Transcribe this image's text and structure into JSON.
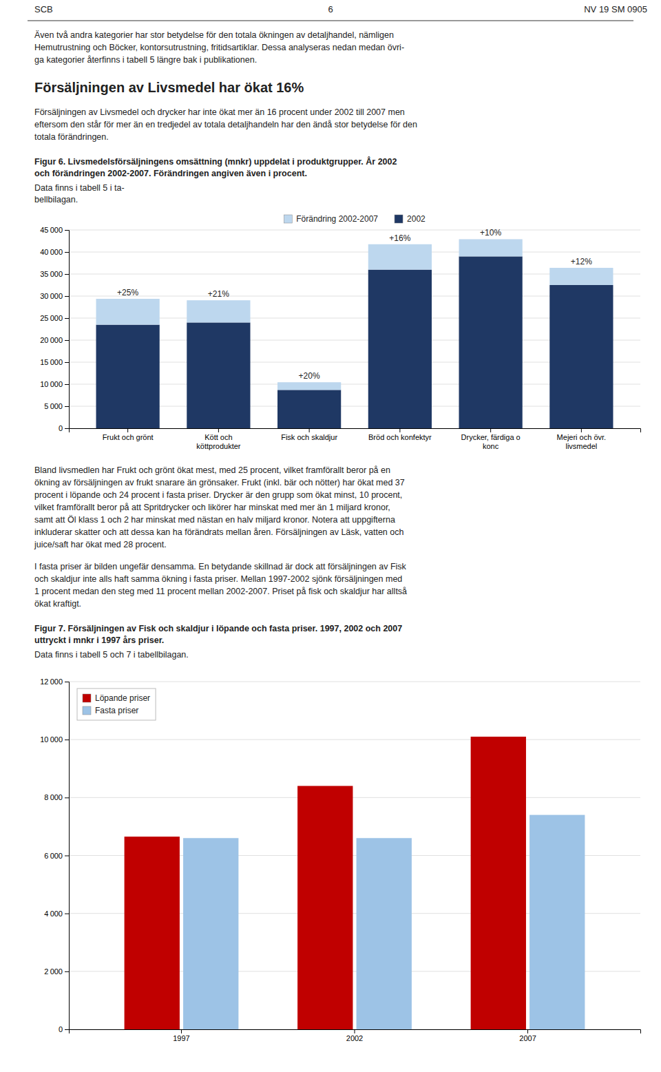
{
  "page": {
    "header": [
      "SCB",
      "6",
      "NV 19 SM 0905"
    ],
    "heading": "Försäljningen av Livsmedel har ökat 16%",
    "paragraphs": [
      "Även två andra kategorier har stor betydelse för den totala ökningen av detaljhandel, nämligen\nHemutrustning och Böcker, kontorsutrustning, fritidsartiklar. Dessa analyseras nedan medan övri-\nga kategorier återfinns i tabell 5 längre bak i publikationen.",
      "Försäljningen av Livsmedel och drycker har inte ökat mer än 16 procent under 2002 till 2007 men\neftersom den står för mer än en tredjedel av totala detaljhandeln har den ändå stor betydelse för den\ntotala förändringen.",
      "Bland livsmedlen har Frukt och grönt ökat mest, med 25 procent, vilket framförallt beror på en\nökning av försäljningen av frukt snarare än grönsaker. Frukt (inkl. bär och nötter) har ökat med 37\nprocent i löpande och 24 procent i fasta priser. Drycker är den grupp som ökat minst, 10 procent,\nvilket framförallt beror på att Spritdrycker och likörer har minskat med mer än 1 miljard kronor,\nsamt att Öl klass 1 och 2 har minskat med nästan en halv miljard kronor. Notera att uppgifterna\ninkluderar skatter och att dessa kan ha förändrats mellan åren. Försäljningen av Läsk, vatten och\njuice/saft har ökat med 28 procent.",
      "I fasta priser är bilden ungefär densamma. En betydande skillnad är dock att försäljningen av Fisk\noch skaldjur inte alls haft samma ökning i fasta priser. Mellan 1997-2002 sjönk försäljningen med\n1 procent medan den steg med 11 procent mellan 2002-2007. Priset på fisk och skaldjur har alltså\nökat kraftigt."
    ]
  },
  "chart_data": [
    {
      "type": "bar",
      "title": "Figur 6. Livsmedelsförsäljningens omsättning (mnkr) uppdelat i produktgrupper. År 2002\noch förändringen 2002-2007. Förändringen angiven även i procent.",
      "subtitle": " Data finns i tabell 5 i ta-\nbellbilagan.",
      "categories": [
        "Frukt och grönt",
        "Kött och\nköttprodukter",
        "Fisk och skaldjur",
        "Bröd och konfektyr",
        "Drycker, färdiga o\nkonc",
        "Mejeri och övr.\nlivsmedel"
      ],
      "series": [
        {
          "name": "2002",
          "color": "#1F3864",
          "values": [
            23500,
            24000,
            8700,
            36000,
            39000,
            32500
          ]
        },
        {
          "name": "Förändring 2002-2007",
          "color": "#BDD7EE",
          "values": [
            5875,
            5040,
            1740,
            5760,
            3900,
            3900
          ]
        }
      ],
      "annotations": [
        "+25%",
        "+21%",
        "+20%",
        "+16%",
        "+10%",
        "+12%"
      ],
      "stacked": true,
      "ylim": [
        0,
        45000
      ],
      "yticks": [
        0,
        {
          "value": 5000,
          "label": "5 000"
        },
        {
          "value": 10000,
          "label": "10 000"
        },
        {
          "value": 15000,
          "label": "15 000"
        },
        {
          "value": 20000,
          "label": "20 000"
        },
        {
          "value": 25000,
          "label": "25 000"
        },
        {
          "value": 30000,
          "label": "30 000"
        },
        {
          "value": 35000,
          "label": "35 000"
        },
        {
          "value": 40000,
          "label": "40 000"
        },
        {
          "value": 45000,
          "label": "45 000"
        }
      ],
      "grid": true,
      "legend": "top"
    },
    {
      "type": "bar",
      "title": "Figur 7. Försäljningen av Fisk och skaldjur i löpande och fasta priser. 1997, 2002 och 2007\nuttryckt i mnkr i 1997 års priser.",
      "subtitle": " Data finns i tabell 5 och 7 i tabellbilagan.",
      "categories": [
        "1997",
        "2002",
        "2007"
      ],
      "series": [
        {
          "name": "Löpande priser",
          "color": "#C00000",
          "values": [
            6650,
            8400,
            10100
          ]
        },
        {
          "name": "Fasta priser",
          "color": "#9DC3E6",
          "values": [
            6600,
            6600,
            7400
          ]
        }
      ],
      "ylim": [
        0,
        12000
      ],
      "yticks": [
        0,
        {
          "value": 2000,
          "label": "2 000"
        },
        {
          "value": 4000,
          "label": "4 000"
        },
        {
          "value": 6000,
          "label": "6 000"
        },
        {
          "value": 8000,
          "label": "8 000"
        },
        {
          "value": 10000,
          "label": "10 000"
        },
        {
          "value": 12000,
          "label": "12 000"
        }
      ],
      "grid": true,
      "legend": "top-left"
    }
  ]
}
